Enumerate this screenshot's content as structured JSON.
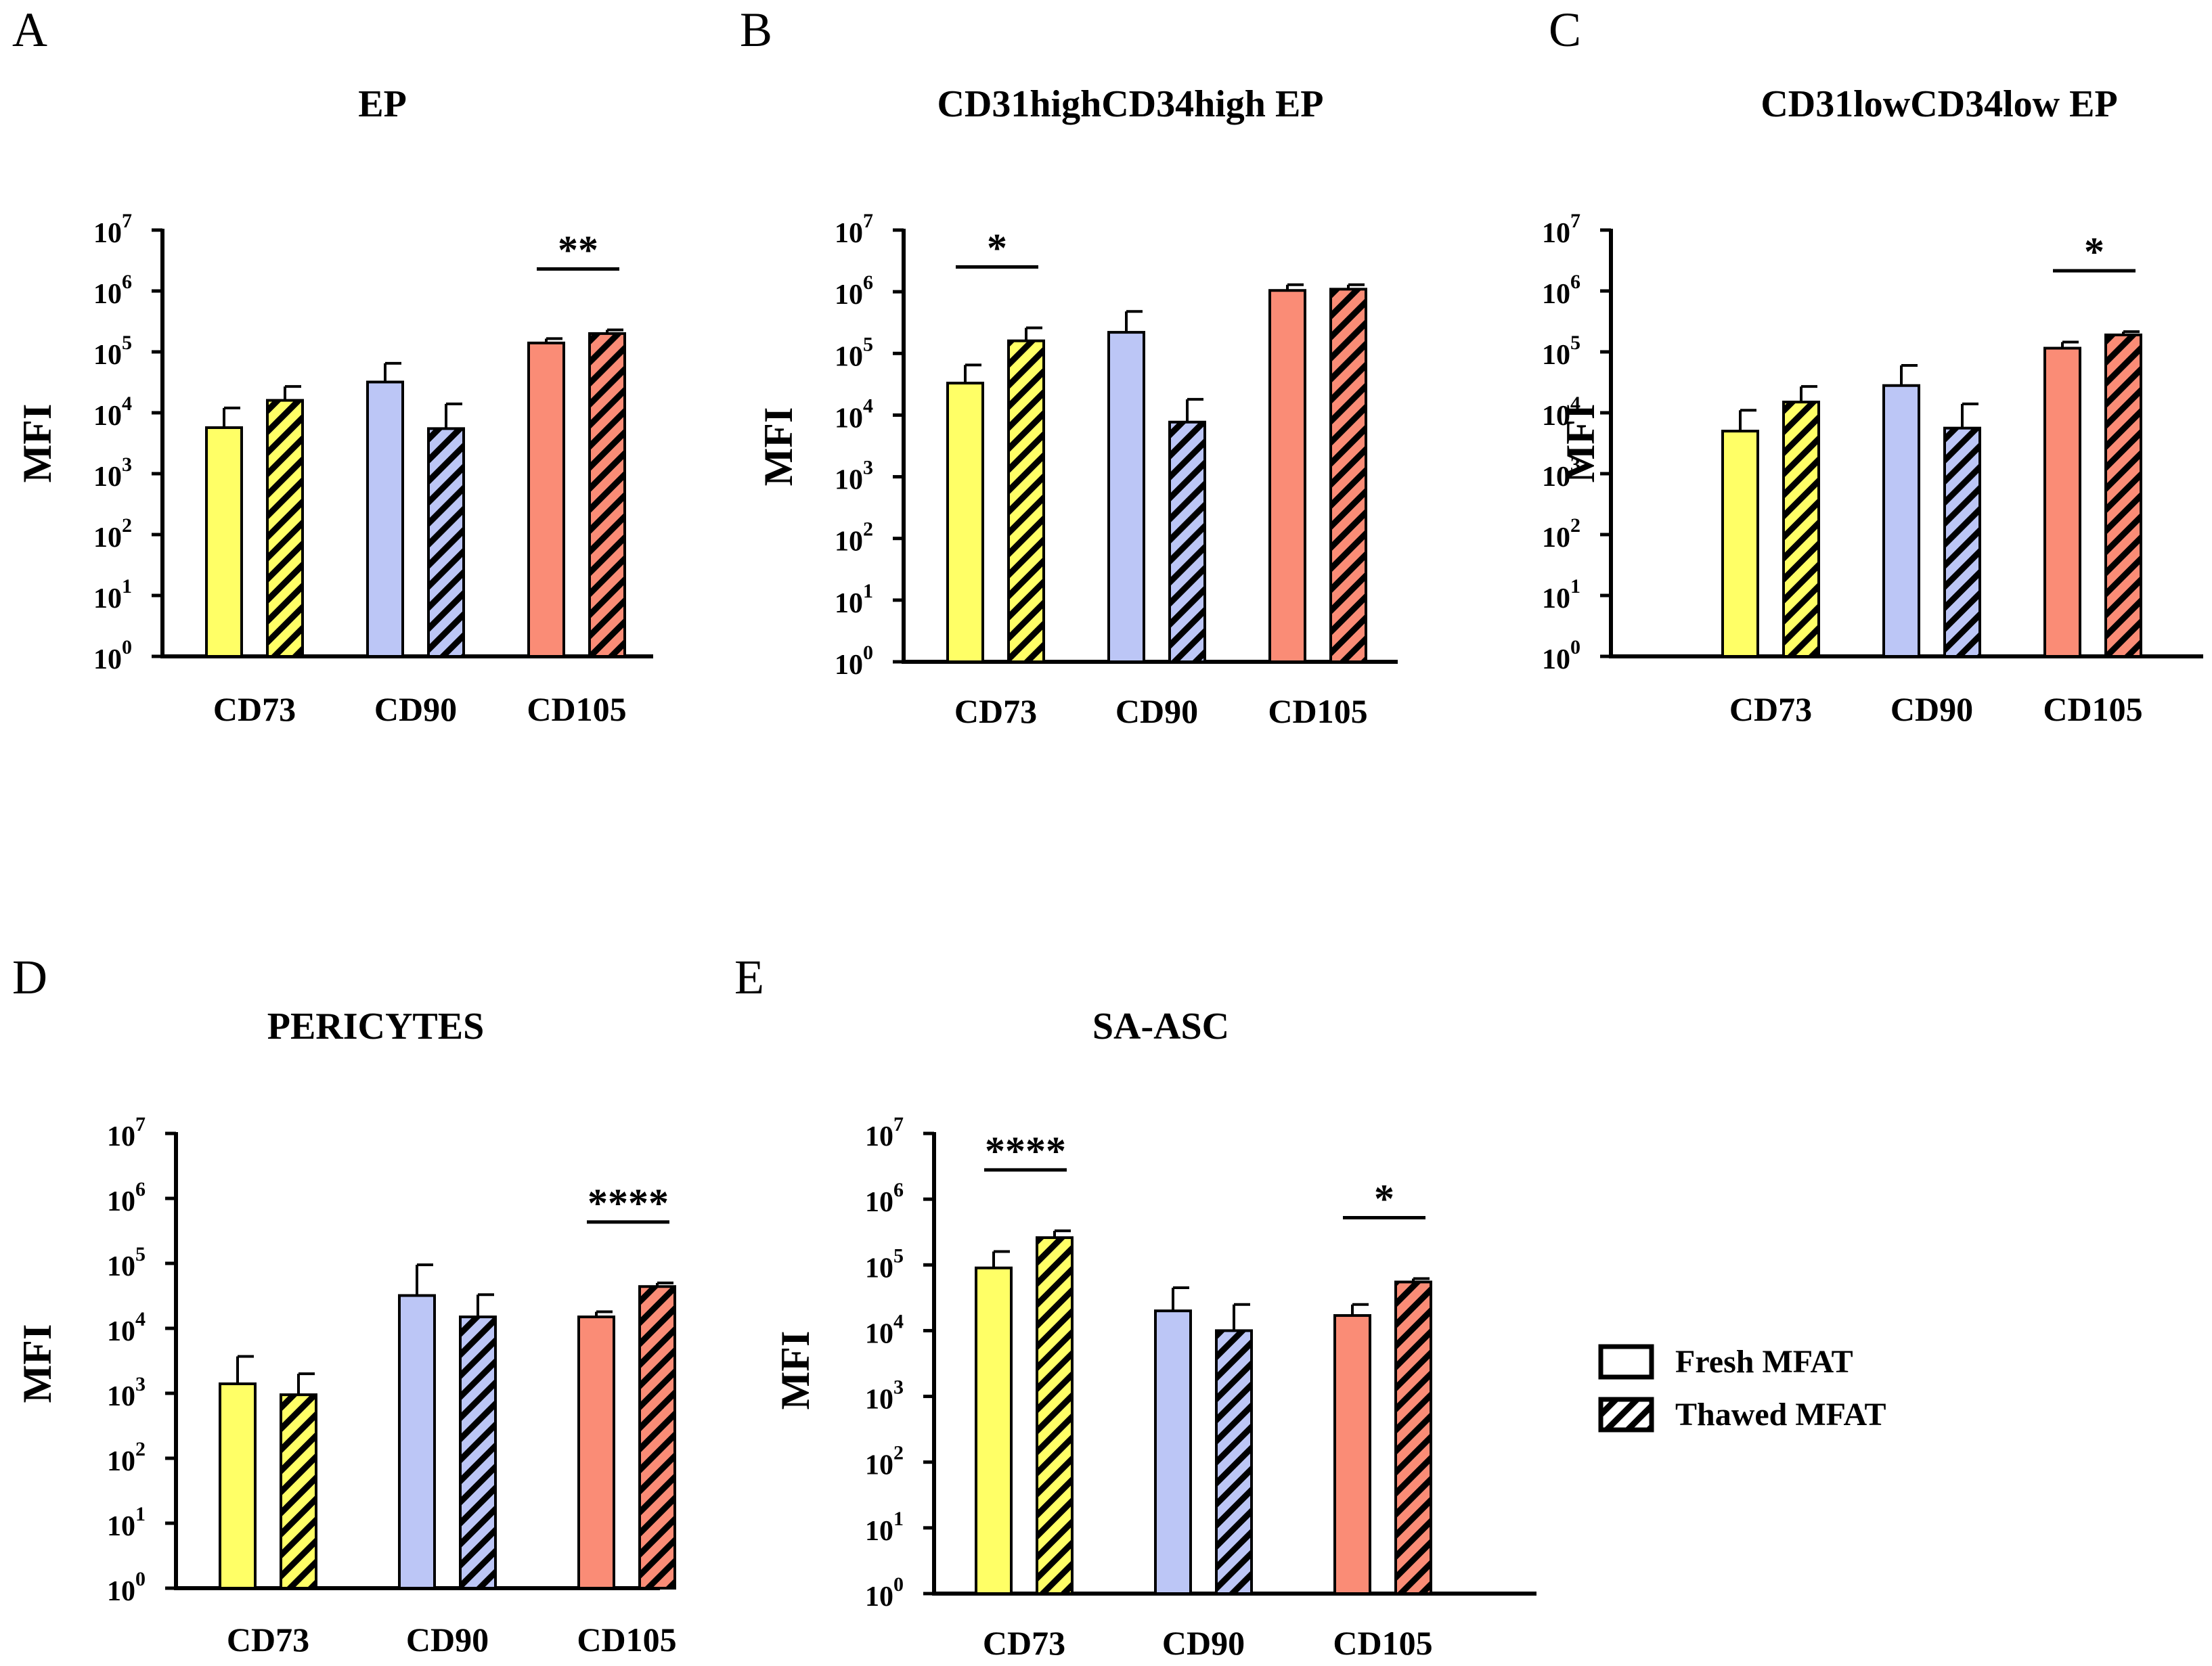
{
  "legend": {
    "items": [
      {
        "label": "Fresh MFAT",
        "style": "solid"
      },
      {
        "label": "Thawed MFAT",
        "style": "hatched"
      }
    ]
  },
  "colors": {
    "CD73": "#ffff66",
    "CD90": "#bcc6f6",
    "CD105": "#fa8c76",
    "axis": "#000000"
  },
  "chart_data": [
    {
      "panel": "A",
      "type": "bar",
      "title": "EP",
      "ylabel": "MFI",
      "yscale": "log",
      "ylim": [
        1,
        10000000
      ],
      "yticks": [
        {
          "b": "10",
          "e": "0"
        },
        {
          "b": "10",
          "e": "1"
        },
        {
          "b": "10",
          "e": "2"
        },
        {
          "b": "10",
          "e": "3"
        },
        {
          "b": "10",
          "e": "4"
        },
        {
          "b": "10",
          "e": "5"
        },
        {
          "b": "10",
          "e": "6"
        },
        {
          "b": "10",
          "e": "7"
        }
      ],
      "categories": [
        "CD73",
        "CD90",
        "CD105"
      ],
      "series": [
        {
          "name": "Fresh MFAT",
          "values": [
            5700,
            32000,
            140000
          ],
          "errors": [
            12000,
            65000,
            165000
          ]
        },
        {
          "name": "Thawed MFAT",
          "values": [
            16000,
            5500,
            200000
          ],
          "errors": [
            27000,
            14000,
            230000
          ]
        }
      ],
      "significance": [
        {
          "category": "CD105",
          "label": "**"
        }
      ]
    },
    {
      "panel": "B",
      "type": "bar",
      "title": "CD31highCD34high EP",
      "ylabel": "MFI",
      "yscale": "log",
      "ylim": [
        1,
        10000000
      ],
      "yticks": [
        {
          "b": "10",
          "e": "0"
        },
        {
          "b": "10",
          "e": "1"
        },
        {
          "b": "10",
          "e": "2"
        },
        {
          "b": "10",
          "e": "3"
        },
        {
          "b": "10",
          "e": "4"
        },
        {
          "b": "10",
          "e": "5"
        },
        {
          "b": "10",
          "e": "6"
        },
        {
          "b": "10",
          "e": "7"
        }
      ],
      "categories": [
        "CD73",
        "CD90",
        "CD105"
      ],
      "series": [
        {
          "name": "Fresh MFAT",
          "values": [
            33000,
            220000,
            1050000
          ],
          "errors": [
            65000,
            480000,
            1300000
          ]
        },
        {
          "name": "Thawed MFAT",
          "values": [
            160000,
            7700,
            1100000
          ],
          "errors": [
            260000,
            18000,
            1300000
          ]
        }
      ],
      "significance": [
        {
          "category": "CD73",
          "label": "*"
        }
      ]
    },
    {
      "panel": "C",
      "type": "bar",
      "title": "CD31lowCD34low EP",
      "ylabel": "MFI",
      "yscale": "log",
      "ylim": [
        1,
        10000000
      ],
      "yticks": [
        {
          "b": "10",
          "e": "0"
        },
        {
          "b": "10",
          "e": "1"
        },
        {
          "b": "10",
          "e": "2"
        },
        {
          "b": "10",
          "e": "3"
        },
        {
          "b": "10",
          "e": "4"
        },
        {
          "b": "10",
          "e": "5"
        },
        {
          "b": "10",
          "e": "6"
        },
        {
          "b": "10",
          "e": "7"
        }
      ],
      "categories": [
        "CD73",
        "CD90",
        "CD105"
      ],
      "series": [
        {
          "name": "Fresh MFAT",
          "values": [
            5000,
            28000,
            115000
          ],
          "errors": [
            11000,
            60000,
            145000
          ]
        },
        {
          "name": "Thawed MFAT",
          "values": [
            15000,
            5600,
            190000
          ],
          "errors": [
            27000,
            14000,
            215000
          ]
        }
      ],
      "significance": [
        {
          "category": "CD105",
          "label": "*"
        }
      ]
    },
    {
      "panel": "D",
      "type": "bar",
      "title": "PERICYTES",
      "ylabel": "MFI",
      "yscale": "log",
      "ylim": [
        1,
        10000000
      ],
      "yticks": [
        {
          "b": "10",
          "e": "0"
        },
        {
          "b": "10",
          "e": "1"
        },
        {
          "b": "10",
          "e": "2"
        },
        {
          "b": "10",
          "e": "3"
        },
        {
          "b": "10",
          "e": "4"
        },
        {
          "b": "10",
          "e": "5"
        },
        {
          "b": "10",
          "e": "6"
        },
        {
          "b": "10",
          "e": "7"
        }
      ],
      "categories": [
        "CD73",
        "CD90",
        "CD105"
      ],
      "series": [
        {
          "name": "Fresh MFAT",
          "values": [
            1400,
            32000,
            15000
          ],
          "errors": [
            3700,
            95000,
            18000
          ]
        },
        {
          "name": "Thawed MFAT",
          "values": [
            950,
            15000,
            44000
          ],
          "errors": [
            2000,
            33000,
            50000
          ]
        }
      ],
      "significance": [
        {
          "category": "CD105",
          "label": "****"
        }
      ]
    },
    {
      "panel": "E",
      "type": "bar",
      "title": "SA-ASC",
      "ylabel": "MFI",
      "yscale": "log",
      "ylim": [
        1,
        10000000
      ],
      "yticks": [
        {
          "b": "10",
          "e": "0"
        },
        {
          "b": "10",
          "e": "1"
        },
        {
          "b": "10",
          "e": "2"
        },
        {
          "b": "10",
          "e": "3"
        },
        {
          "b": "10",
          "e": "4"
        },
        {
          "b": "10",
          "e": "5"
        },
        {
          "b": "10",
          "e": "6"
        },
        {
          "b": "10",
          "e": "7"
        }
      ],
      "categories": [
        "CD73",
        "CD90",
        "CD105"
      ],
      "series": [
        {
          "name": "Fresh MFAT",
          "values": [
            90000,
            20000,
            17000
          ],
          "errors": [
            160000,
            45000,
            25000
          ]
        },
        {
          "name": "Thawed MFAT",
          "values": [
            260000,
            10000,
            55000
          ],
          "errors": [
            330000,
            25000,
            62000
          ]
        }
      ],
      "significance": [
        {
          "category": "CD73",
          "label": "****"
        },
        {
          "category": "CD105",
          "label": "*"
        }
      ]
    }
  ]
}
